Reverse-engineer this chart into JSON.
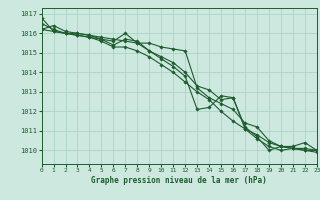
{
  "title": "Graphe pression niveau de la mer (hPa)",
  "bg_color": "#cce8df",
  "grid_color": "#aad4c8",
  "line_color": "#1e5c2e",
  "marker_color": "#1e5c2e",
  "ylim": [
    1009.3,
    1017.3
  ],
  "xlim": [
    0,
    23
  ],
  "yticks": [
    1010,
    1011,
    1012,
    1013,
    1014,
    1015,
    1016,
    1017
  ],
  "xticks": [
    0,
    1,
    2,
    3,
    4,
    5,
    6,
    7,
    8,
    9,
    10,
    11,
    12,
    13,
    14,
    15,
    16,
    17,
    18,
    19,
    20,
    21,
    22,
    23
  ],
  "series": [
    [
      1016.5,
      1016.2,
      1016.0,
      1016.0,
      1015.9,
      1015.8,
      1015.7,
      1015.6,
      1015.5,
      1015.1,
      1014.8,
      1014.5,
      1014.0,
      1013.3,
      1013.1,
      1012.6,
      1012.7,
      1011.2,
      1010.7,
      1010.0,
      1010.2,
      1010.2,
      1010.4,
      1010.0
    ],
    [
      1016.2,
      1016.4,
      1016.1,
      1016.0,
      1015.9,
      1015.7,
      1015.4,
      1015.7,
      1015.6,
      1015.1,
      1014.7,
      1014.3,
      1013.8,
      1012.1,
      1012.2,
      1012.8,
      1012.7,
      1011.1,
      1010.6,
      1010.2,
      1010.0,
      1010.1,
      1010.0,
      1010.0
    ],
    [
      1016.2,
      1016.1,
      1016.0,
      1015.9,
      1015.8,
      1015.6,
      1015.3,
      1015.3,
      1015.1,
      1014.8,
      1014.4,
      1014.0,
      1013.5,
      1013.0,
      1012.6,
      1012.0,
      1011.5,
      1011.1,
      1010.8,
      1010.4,
      1010.2,
      1010.1,
      1010.0,
      1009.9
    ],
    [
      1016.8,
      1016.1,
      1016.0,
      1015.9,
      1015.8,
      1015.7,
      1015.6,
      1016.0,
      1015.5,
      1015.5,
      1015.3,
      1015.2,
      1015.1,
      1013.2,
      1012.7,
      1012.4,
      1012.1,
      1011.4,
      1011.2,
      1010.5,
      1010.2,
      1010.1,
      1010.1,
      1010.0
    ]
  ]
}
